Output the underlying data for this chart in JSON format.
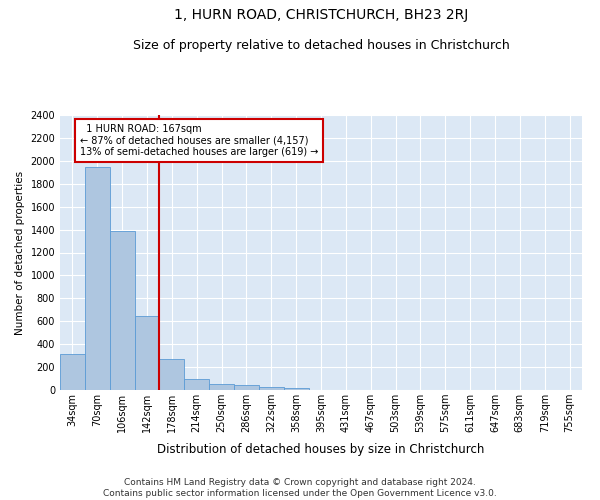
{
  "title": "1, HURN ROAD, CHRISTCHURCH, BH23 2RJ",
  "subtitle": "Size of property relative to detached houses in Christchurch",
  "xlabel": "Distribution of detached houses by size in Christchurch",
  "ylabel": "Number of detached properties",
  "footer_line1": "Contains HM Land Registry data © Crown copyright and database right 2024.",
  "footer_line2": "Contains public sector information licensed under the Open Government Licence v3.0.",
  "bar_labels": [
    "34sqm",
    "70sqm",
    "106sqm",
    "142sqm",
    "178sqm",
    "214sqm",
    "250sqm",
    "286sqm",
    "322sqm",
    "358sqm",
    "395sqm",
    "431sqm",
    "467sqm",
    "503sqm",
    "539sqm",
    "575sqm",
    "611sqm",
    "647sqm",
    "683sqm",
    "719sqm",
    "755sqm"
  ],
  "bar_values": [
    310,
    1950,
    1390,
    650,
    270,
    100,
    50,
    40,
    25,
    15,
    0,
    0,
    0,
    0,
    0,
    0,
    0,
    0,
    0,
    0,
    0
  ],
  "bar_color": "#aec6e0",
  "bar_edge_color": "#5b9bd5",
  "vline_x": 3.5,
  "vline_color": "#cc0000",
  "annotation_text": "  1 HURN ROAD: 167sqm\n← 87% of detached houses are smaller (4,157)\n13% of semi-detached houses are larger (619) →",
  "annotation_box_color": "#ffffff",
  "annotation_box_edge": "#cc0000",
  "ylim": [
    0,
    2400
  ],
  "ytick_step": 200,
  "background_color": "#dce8f5",
  "grid_color": "#ffffff",
  "title_fontsize": 10,
  "subtitle_fontsize": 9,
  "xlabel_fontsize": 8.5,
  "ylabel_fontsize": 7.5,
  "tick_fontsize": 7,
  "footer_fontsize": 6.5
}
